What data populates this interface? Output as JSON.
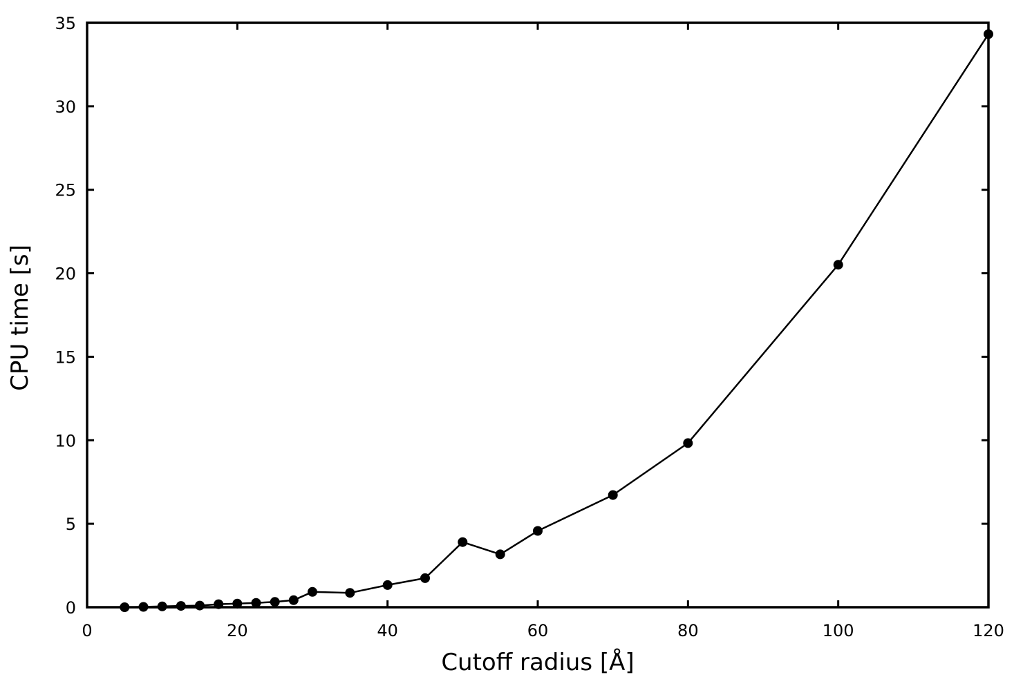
{
  "chart_data": {
    "type": "line",
    "title": "",
    "xlabel": "Cutoff radius [Å]",
    "ylabel": "CPU time [s]",
    "xlim": [
      0,
      120
    ],
    "ylim": [
      0,
      35
    ],
    "xticks": [
      0,
      20,
      40,
      60,
      80,
      100,
      120
    ],
    "yticks": [
      0,
      5,
      10,
      15,
      20,
      25,
      30,
      35
    ],
    "grid": false,
    "legend": "none",
    "series": [
      {
        "color": "#000000",
        "marker": "filled-circle",
        "x": [
          5,
          7.5,
          10,
          12.5,
          15,
          17.5,
          20,
          22.5,
          25,
          27.5,
          30,
          35,
          40,
          45,
          50,
          55,
          60,
          70,
          80,
          100,
          120
        ],
        "y": [
          0.0,
          0.02,
          0.05,
          0.08,
          0.1,
          0.18,
          0.22,
          0.26,
          0.32,
          0.42,
          0.92,
          0.86,
          1.33,
          1.74,
          3.9,
          3.17,
          4.57,
          6.72,
          9.83,
          20.51,
          34.32
        ]
      }
    ]
  }
}
